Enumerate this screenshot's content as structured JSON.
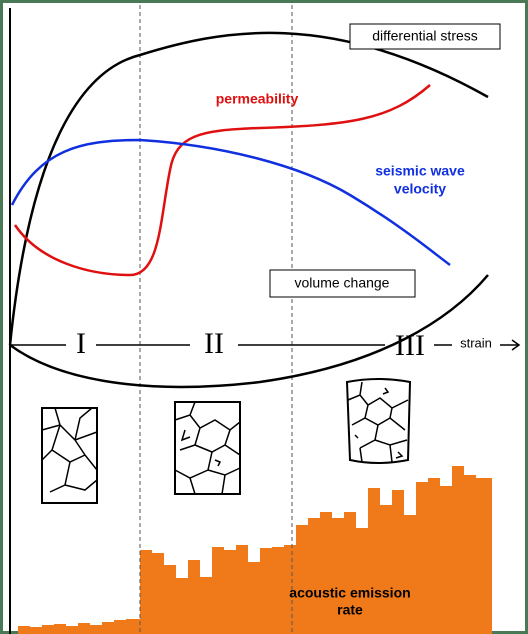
{
  "curves": {
    "differential_stress": "differential stress",
    "permeability": "permeability",
    "seismic_wave_velocity": [
      "seismic wave",
      "velocity"
    ],
    "volume_change": "volume change"
  },
  "stages": [
    "I",
    "II",
    "III"
  ],
  "axis_label": "strain",
  "acoustic_emission": [
    "acoustic emission",
    "rate"
  ]
}
